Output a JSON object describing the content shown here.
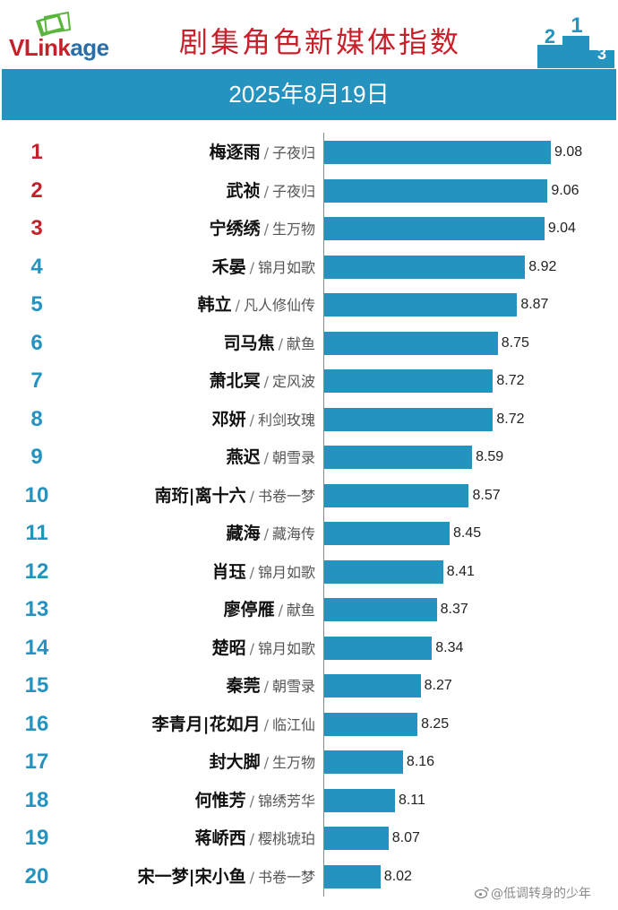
{
  "header": {
    "logo": {
      "prefix": "VL",
      "middle": "ink",
      "suffix": "age"
    },
    "title": "剧集角色新媒体指数",
    "podium_numbers": [
      "2",
      "1",
      "3"
    ],
    "date": "2025年8月19日"
  },
  "colors": {
    "bar": "#2593bf",
    "top_rank": "#c8202b",
    "other_rank": "#2593bf",
    "title": "#c8202b"
  },
  "separator": "/",
  "chart_data": {
    "type": "bar",
    "orientation": "horizontal",
    "title": "剧集角色新媒体指数",
    "subtitle": "2025年8月19日",
    "xlim": [
      7.67,
      9.24
    ],
    "rows": [
      {
        "rank": "1",
        "name": "梅逐雨",
        "drama": "子夜归",
        "value": 9.08
      },
      {
        "rank": "2",
        "name": "武祯",
        "drama": "子夜归",
        "value": 9.06
      },
      {
        "rank": "3",
        "name": "宁绣绣",
        "drama": "生万物",
        "value": 9.04
      },
      {
        "rank": "4",
        "name": "禾晏",
        "drama": "锦月如歌",
        "value": 8.92
      },
      {
        "rank": "5",
        "name": "韩立",
        "drama": "凡人修仙传",
        "value": 8.87
      },
      {
        "rank": "6",
        "name": "司马焦",
        "drama": "献鱼",
        "value": 8.75
      },
      {
        "rank": "7",
        "name": "萧北冥",
        "drama": "定风波",
        "value": 8.72
      },
      {
        "rank": "8",
        "name": "邓妍",
        "drama": "利剑玫瑰",
        "value": 8.72
      },
      {
        "rank": "9",
        "name": "燕迟",
        "drama": "朝雪录",
        "value": 8.59
      },
      {
        "rank": "10",
        "name": "南珩|离十六",
        "drama": "书卷一梦",
        "value": 8.57
      },
      {
        "rank": "11",
        "name": "藏海",
        "drama": "藏海传",
        "value": 8.45
      },
      {
        "rank": "12",
        "name": "肖珏",
        "drama": "锦月如歌",
        "value": 8.41
      },
      {
        "rank": "13",
        "name": "廖停雁",
        "drama": "献鱼",
        "value": 8.37
      },
      {
        "rank": "14",
        "name": "楚昭",
        "drama": "锦月如歌",
        "value": 8.34
      },
      {
        "rank": "15",
        "name": "秦莞",
        "drama": "朝雪录",
        "value": 8.27
      },
      {
        "rank": "16",
        "name": "李青月|花如月",
        "drama": "临江仙",
        "value": 8.25
      },
      {
        "rank": "17",
        "name": "封大脚",
        "drama": "生万物",
        "value": 8.16
      },
      {
        "rank": "18",
        "name": "何惟芳",
        "drama": "锦绣芳华",
        "value": 8.11
      },
      {
        "rank": "19",
        "name": "蒋峤西",
        "drama": "樱桃琥珀",
        "value": 8.07
      },
      {
        "rank": "20",
        "name": "宋一梦|宋小鱼",
        "drama": "书卷一梦",
        "value": 8.02
      }
    ]
  },
  "watermark": {
    "icon": "weibo-icon",
    "text": "@低调转身的少年"
  }
}
